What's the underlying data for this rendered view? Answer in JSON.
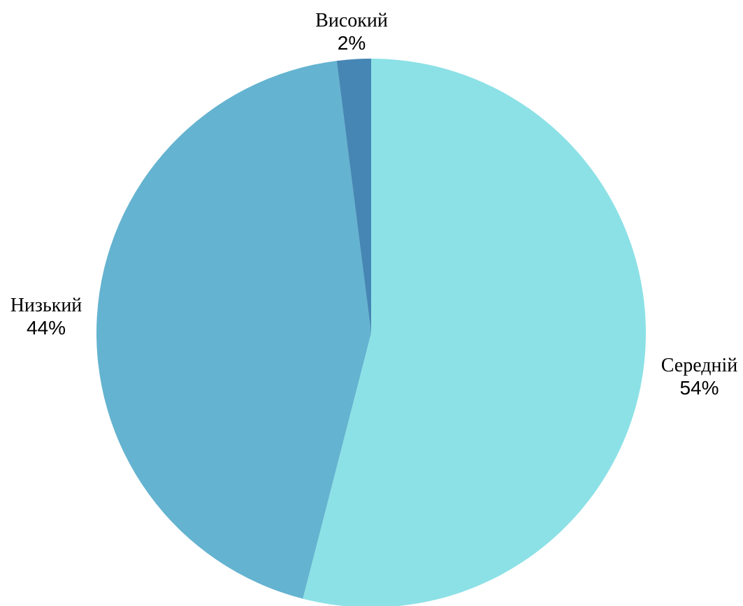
{
  "chart_data": {
    "type": "pie",
    "start_angle_deg": 0,
    "direction": "clockwise",
    "slices": [
      {
        "label": "Середній",
        "value": 54,
        "value_label": "54%",
        "color": "#8CE1E6"
      },
      {
        "label": "Низький",
        "value": 44,
        "value_label": "44%",
        "color": "#64B3D0"
      },
      {
        "label": "Високий",
        "value": 2,
        "value_label": "2%",
        "color": "#4686B5"
      }
    ]
  }
}
